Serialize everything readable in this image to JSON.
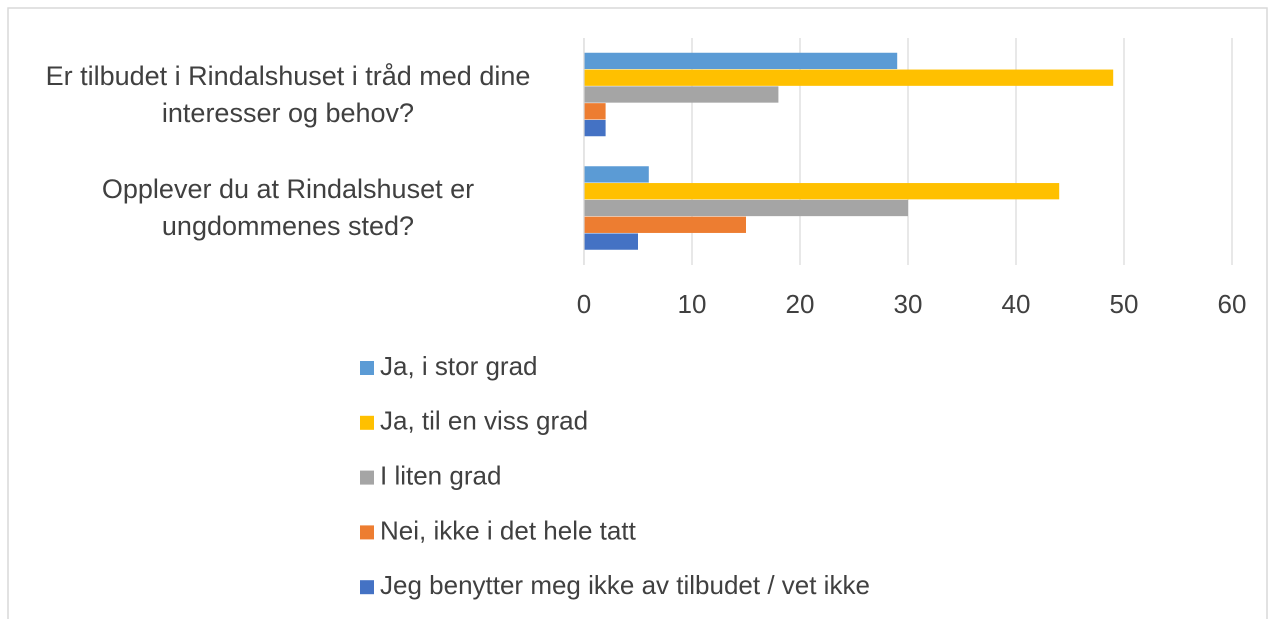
{
  "chart_data": {
    "type": "bar",
    "orientation": "horizontal",
    "categories": [
      "Er tilbudet i Rindalshuset i tråd med dine interesser og behov?",
      "Opplever du at Rindalshuset er ungdommenes sted?"
    ],
    "series": [
      {
        "name": "Ja, i stor grad",
        "color": "#5b9bd5",
        "values": [
          29,
          6
        ]
      },
      {
        "name": "Ja, til en viss grad",
        "color": "#ffc000",
        "values": [
          49,
          44
        ]
      },
      {
        "name": "I liten grad",
        "color": "#a5a5a5",
        "values": [
          18,
          30
        ]
      },
      {
        "name": "Nei, ikke i det hele tatt",
        "color": "#ed7d31",
        "values": [
          2,
          15
        ]
      },
      {
        "name": "Jeg benytter meg ikke av tilbudet / vet ikke",
        "color": "#4472c4",
        "values": [
          2,
          5
        ]
      }
    ],
    "xlim": [
      0,
      60
    ],
    "xticks": [
      0,
      10,
      20,
      30,
      40,
      50,
      60
    ],
    "grid": true,
    "legend": "bottom"
  }
}
